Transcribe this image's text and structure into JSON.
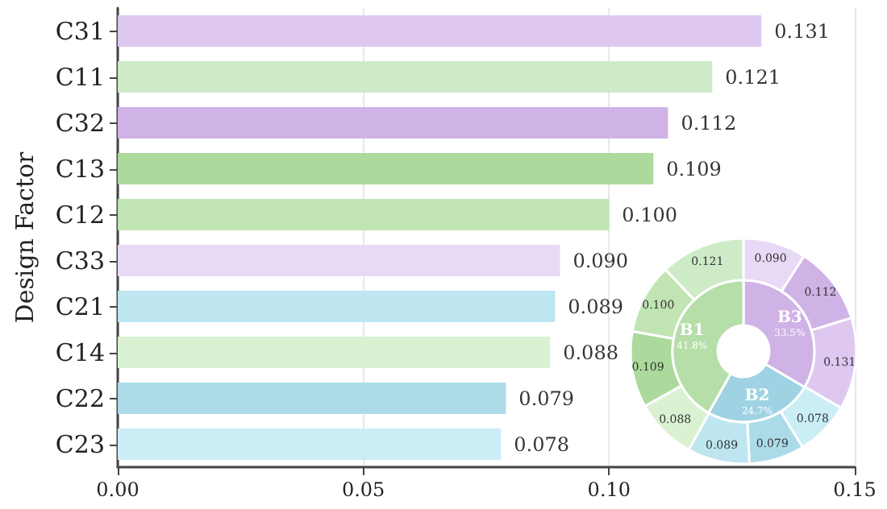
{
  "chart_data": [
    {
      "type": "bar",
      "orientation": "horizontal",
      "ylabel": "Design Factor",
      "categories": [
        "C31",
        "C11",
        "C32",
        "C13",
        "C12",
        "C33",
        "C21",
        "C14",
        "C22",
        "C23"
      ],
      "values": [
        0.131,
        0.121,
        0.112,
        0.109,
        0.1,
        0.09,
        0.089,
        0.088,
        0.079,
        0.078
      ],
      "colors": [
        "#dfc8f0",
        "#cdebc6",
        "#d0b3e6",
        "#acd99c",
        "#c0e5b3",
        "#e8daf6",
        "#bde6f0",
        "#daf2d2",
        "#acdbe8",
        "#cbeef6"
      ],
      "value_labels": [
        "0.131",
        "0.121",
        "0.112",
        "0.109",
        "0.100",
        "0.090",
        "0.089",
        "0.088",
        "0.079",
        "0.078"
      ],
      "xlim": [
        0,
        0.15
      ],
      "xticks": [
        {
          "value": 0,
          "label": "0.00"
        },
        {
          "value": 0.05,
          "label": "0.05"
        },
        {
          "value": 0.1,
          "label": "0.10"
        },
        {
          "value": 0.15,
          "label": "0.15"
        }
      ],
      "grid": "x"
    },
    {
      "type": "donut",
      "categories": [
        "B3",
        "B2",
        "B1"
      ],
      "values": [
        33.5,
        24.7,
        41.8
      ],
      "colors": [
        "#cfb2e6",
        "#9fd3e3",
        "#b5dea8"
      ],
      "value_labels": [
        "33.5%",
        "24.7%",
        "41.8%"
      ]
    },
    {
      "type": "donut",
      "categories": [
        null,
        null,
        null,
        null,
        null,
        null,
        null,
        null,
        null,
        null
      ],
      "values": [
        0.09,
        0.112,
        0.131,
        0.078,
        0.079,
        0.089,
        0.088,
        0.109,
        0.1,
        0.121
      ],
      "colors": [
        "#e8daf6",
        "#d0b3e6",
        "#dfc8f0",
        "#cbeef6",
        "#acdbe8",
        "#bde6f0",
        "#daf2d2",
        "#acd99c",
        "#c0e5b3",
        "#cdebc6"
      ],
      "value_labels": [
        "0.090",
        "0.112",
        "0.131",
        "0.078",
        "0.079",
        "0.089",
        "0.088",
        "0.109",
        "0.100",
        "0.121"
      ]
    }
  ]
}
